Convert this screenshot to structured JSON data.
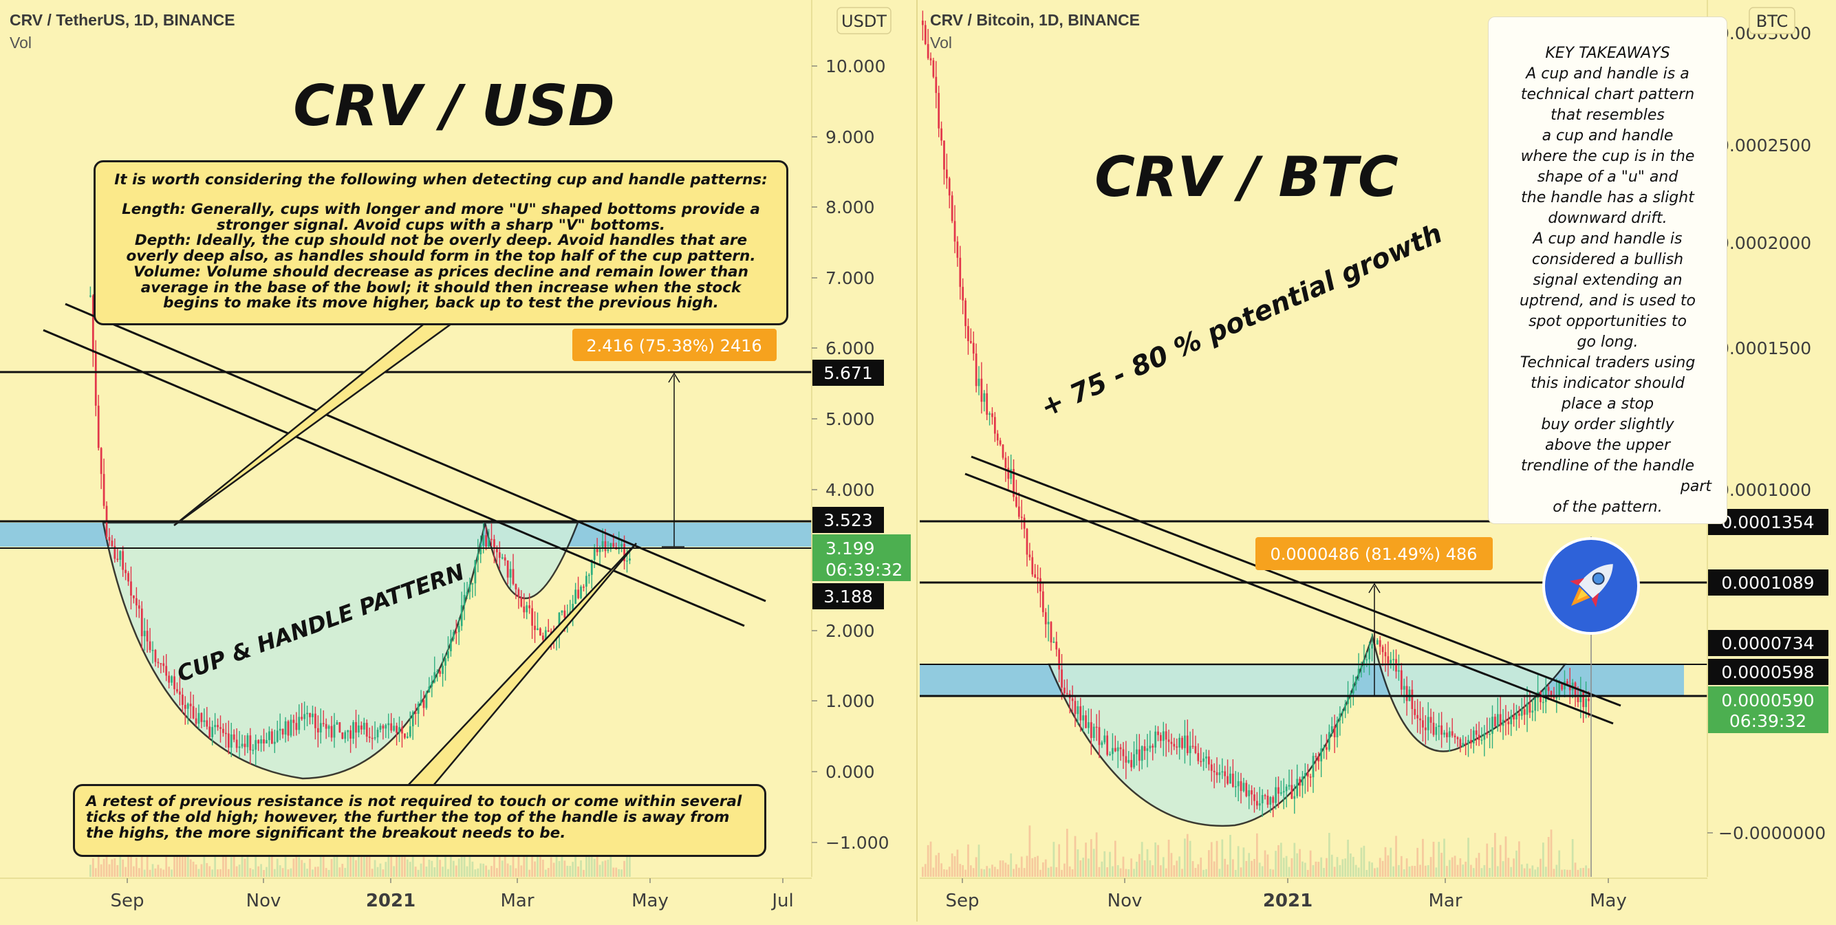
{
  "left_chart": {
    "legend_symbol": "CRV / TetherUS, 1D, BINANCE",
    "legend_vol": "Vol",
    "currency": "USDT",
    "big_title": "CRV / USD",
    "pattern_label": "CUP & HANDLE PATTERN",
    "target_label": "2.416 (75.38%) 2416",
    "price_axis": [
      "10.000",
      "9.000",
      "8.000",
      "7.000",
      "6.000",
      "5.000",
      "4.000",
      "2.000",
      "1.000",
      "0.000",
      "−1.000"
    ],
    "price_tags": {
      "target": "5.671",
      "resistance": "3.523",
      "last": "3.199",
      "countdown": "06:39:32",
      "support": "3.188"
    },
    "time_axis": [
      "Sep",
      "Nov",
      "2021",
      "Mar",
      "May",
      "Jul"
    ]
  },
  "right_chart": {
    "legend_symbol": "CRV / Bitcoin, 1D, BINANCE",
    "legend_vol": "Vol",
    "currency": "BTC",
    "big_title": "CRV / BTC",
    "growth_text": "+ 75 - 80 % potential growth",
    "target_label": "0.0000486 (81.49%) 486",
    "price_axis": [
      "0.0003000",
      "0.0002500",
      "0.0002000",
      "0.0001500",
      "0.0001000",
      "−0.0000000"
    ],
    "price_tags": {
      "resistance": "0.0001354",
      "target": "0.0001089",
      "level_a": "0.0000734",
      "level_b": "0.0000598",
      "last": "0.0000590",
      "countdown": "06:39:32"
    },
    "time_axis": [
      "Sep",
      "Nov",
      "2021",
      "Mar",
      "May"
    ]
  },
  "callout_top": {
    "title": "It is worth considering the following when detecting cup and handle patterns:",
    "lines": [
      "Length: Generally, cups with longer and more \"U\" shaped bottoms provide a",
      "stronger signal. Avoid cups with a sharp \"V\" bottoms.",
      "Depth: Ideally, the cup should not be overly deep. Avoid handles that are",
      "overly deep also, as handles should form in the top half of the cup pattern.",
      "Volume: Volume should decrease as prices decline and remain lower than",
      "average in the base of the bowl; it should then increase when the stock",
      "begins to make its move higher, back up to test the previous high."
    ]
  },
  "callout_bottom": {
    "lines": [
      "A retest of previous resistance is not required to touch or come within several",
      "ticks of the old high; however, the further the top of the handle is away from",
      "the highs, the more significant the breakout needs to be."
    ]
  },
  "takeaways": {
    "lines": [
      "KEY TAKEAWAYS",
      "A cup and handle is a",
      "technical chart pattern",
      "that resembles",
      "a cup and handle",
      "where the cup is in the",
      "shape of a \"u\" and",
      "the handle has a slight",
      "downward drift.",
      "A cup and handle is",
      "considered a bullish",
      "signal extending an",
      "uptrend, and is used to",
      "spot opportunities to",
      "go long.",
      "Technical traders using",
      "this indicator should",
      "place a stop",
      "buy order slightly",
      "above the upper",
      "trendline of the handle",
      "part",
      "of the pattern."
    ]
  },
  "colors": {
    "background": "#fbf3b5",
    "zone": "#7ec3e6",
    "cup_fill": "#cdeedb",
    "up": "#2fae7f",
    "down": "#e2364a",
    "callout": "#fbe98a",
    "target_badge": "#f6a21e",
    "last_price": "#4caf50",
    "rocket": "#2e62d9"
  },
  "icons": {
    "rocket": "rocket-icon"
  },
  "chart_data": [
    {
      "type": "candlestick",
      "title": "CRV / TetherUS, 1D, BINANCE",
      "x": [
        "2020-08-20",
        "2020-09-05",
        "2020-10-01",
        "2020-11-01",
        "2020-12-01",
        "2021-01-01",
        "2021-02-01",
        "2021-02-20",
        "2021-03-15",
        "2021-04-10",
        "2021-04-23"
      ],
      "close": [
        6.2,
        2.9,
        1.8,
        0.55,
        0.7,
        0.8,
        1.6,
        3.3,
        2.1,
        2.7,
        3.199
      ],
      "ylim": [
        -1.5,
        10.5
      ],
      "y_ticks": [
        -1,
        0,
        1,
        2,
        3,
        4,
        5,
        6,
        7,
        8,
        9,
        10
      ],
      "levels": {
        "target": 5.671,
        "resistance": 3.523,
        "support": 3.188
      },
      "zone": [
        3.188,
        3.523
      ],
      "measured_move": {
        "change": 2.416,
        "percent": 75.38,
        "ticks": 2416
      },
      "x_ticks": [
        "Sep",
        "Nov",
        "2021",
        "Mar",
        "May",
        "Jul"
      ],
      "grid": false,
      "series": [
        {
          "name": "Vol"
        }
      ]
    },
    {
      "type": "candlestick",
      "title": "CRV / Bitcoin, 1D, BINANCE",
      "x": [
        "2020-08-20",
        "2020-09-05",
        "2020-10-01",
        "2020-11-01",
        "2020-12-01",
        "2021-01-01",
        "2021-02-01",
        "2021-02-20",
        "2021-03-15",
        "2021-04-10",
        "2021-04-23"
      ],
      "close": [
        0.0004,
        0.00016,
        9e-05,
        5e-05,
        3.5e-05,
        4.5e-05,
        7.5e-05,
        6.6e-05,
        3.5e-05,
        5e-05,
        5.9e-05
      ],
      "ylim": [
        -2e-05,
        0.00032
      ],
      "y_ticks": [
        0,
        0.0001,
        0.00015,
        0.0002,
        0.00025,
        0.0003
      ],
      "levels": {
        "resistance": 0.0001354,
        "target": 0.0001089,
        "level_a": 7.34e-05,
        "level_b": 5.98e-05
      },
      "zone": [
        5.98e-05,
        7.34e-05
      ],
      "measured_move": {
        "change": 4.86e-05,
        "percent": 81.49,
        "ticks": 486
      },
      "x_ticks": [
        "Sep",
        "Nov",
        "2021",
        "Mar",
        "May"
      ],
      "grid": false,
      "series": [
        {
          "name": "Vol"
        }
      ]
    }
  ]
}
